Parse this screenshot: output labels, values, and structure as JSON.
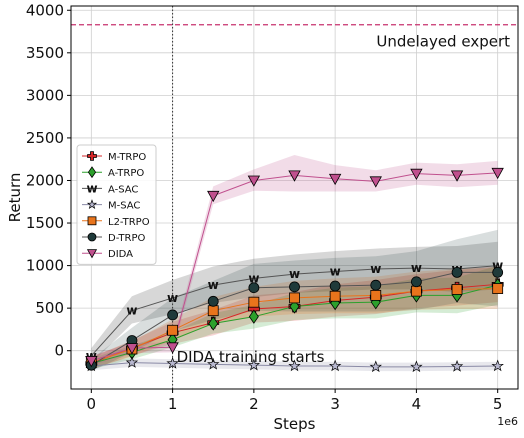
{
  "chart_data": {
    "type": "line",
    "xlabel": "Steps",
    "ylabel": "Return",
    "x_multiplier_label": "1e6",
    "xlim": [
      -0.25,
      5.25
    ],
    "ylim": [
      -450,
      4050
    ],
    "xticks": [
      0,
      1,
      2,
      3,
      4,
      5
    ],
    "yticks": [
      0,
      500,
      1000,
      1500,
      2000,
      2500,
      3000,
      3500,
      4000
    ],
    "grid": true,
    "legend_position": "center-left",
    "annotations": [
      {
        "text": "Undelayed expert",
        "type": "hline",
        "y": 3830,
        "color": "#c8326e"
      },
      {
        "text": "DIDA training starts",
        "type": "vline",
        "x": 1,
        "color": "#333333"
      }
    ],
    "series": [
      {
        "name": "M-TRPO",
        "color": "#d62728",
        "marker": "plus",
        "x": [
          0,
          0.5,
          1,
          1.5,
          2,
          2.5,
          3,
          3.5,
          4,
          4.5,
          5
        ],
        "y": [
          -150,
          30,
          210,
          330,
          490,
          520,
          590,
          630,
          700,
          740,
          780
        ],
        "band": [
          [
            -220,
            -80
          ],
          [
            -60,
            120
          ],
          [
            80,
            340
          ],
          [
            180,
            480
          ],
          [
            330,
            650
          ],
          [
            350,
            690
          ],
          [
            400,
            780
          ],
          [
            430,
            830
          ],
          [
            500,
            900
          ],
          [
            530,
            950
          ],
          [
            570,
            990
          ]
        ]
      },
      {
        "name": "A-TRPO",
        "color": "#2ca02c",
        "marker": "diamond",
        "x": [
          0,
          0.5,
          1,
          1.5,
          2,
          2.5,
          3,
          3.5,
          4,
          4.5,
          5
        ],
        "y": [
          -150,
          -20,
          130,
          320,
          400,
          520,
          560,
          570,
          650,
          650,
          770
        ],
        "band": [
          [
            -220,
            -90
          ],
          [
            -100,
            60
          ],
          [
            40,
            220
          ],
          [
            200,
            440
          ],
          [
            260,
            540
          ],
          [
            360,
            680
          ],
          [
            380,
            740
          ],
          [
            380,
            760
          ],
          [
            450,
            850
          ],
          [
            440,
            860
          ],
          [
            540,
            1000
          ]
        ]
      },
      {
        "name": "A-SAC",
        "color": "#111111",
        "marker": "w",
        "x": [
          0,
          0.5,
          1,
          1.5,
          2,
          2.5,
          3,
          3.5,
          4,
          4.5,
          5
        ],
        "y": [
          -60,
          470,
          620,
          770,
          850,
          900,
          930,
          960,
          970,
          960,
          1000
        ],
        "band": [
          [
            -150,
            30
          ],
          [
            320,
            640
          ],
          [
            430,
            830
          ],
          [
            560,
            990
          ],
          [
            630,
            1080
          ],
          [
            680,
            1130
          ],
          [
            700,
            1170
          ],
          [
            720,
            1200
          ],
          [
            720,
            1220
          ],
          [
            690,
            1230
          ],
          [
            720,
            1280
          ]
        ]
      },
      {
        "name": "M-SAC",
        "color": "#8a8aa6",
        "marker": "star",
        "x": [
          0,
          0.5,
          1,
          1.5,
          2,
          2.5,
          3,
          3.5,
          4,
          4.5,
          5
        ],
        "y": [
          -180,
          -140,
          -150,
          -160,
          -170,
          -180,
          -180,
          -190,
          -190,
          -185,
          -180
        ],
        "band": [
          [
            -230,
            -130
          ],
          [
            -190,
            -90
          ],
          [
            -200,
            -100
          ],
          [
            -210,
            -110
          ],
          [
            -220,
            -120
          ],
          [
            -230,
            -130
          ],
          [
            -230,
            -130
          ],
          [
            -240,
            -140
          ],
          [
            -240,
            -140
          ],
          [
            -235,
            -135
          ],
          [
            -230,
            -130
          ]
        ]
      },
      {
        "name": "L2-TRPO",
        "color": "#e8741c",
        "marker": "square",
        "x": [
          0,
          0.5,
          1,
          1.5,
          2,
          2.5,
          3,
          3.5,
          4,
          4.5,
          5
        ],
        "y": [
          -140,
          20,
          240,
          470,
          570,
          620,
          640,
          650,
          700,
          720,
          730
        ],
        "band": [
          [
            -210,
            -70
          ],
          [
            -70,
            110
          ],
          [
            120,
            370
          ],
          [
            320,
            630
          ],
          [
            400,
            750
          ],
          [
            430,
            820
          ],
          [
            440,
            850
          ],
          [
            440,
            870
          ],
          [
            480,
            930
          ],
          [
            490,
            960
          ],
          [
            490,
            980
          ]
        ]
      },
      {
        "name": "D-TRPO",
        "color": "#1f3a3a",
        "marker": "circle",
        "x": [
          0,
          0.5,
          1,
          1.5,
          2,
          2.5,
          3,
          3.5,
          4,
          4.5,
          5
        ],
        "y": [
          -170,
          120,
          420,
          580,
          740,
          750,
          760,
          770,
          810,
          920,
          920
        ],
        "band": [
          [
            -240,
            -100
          ],
          [
            -20,
            270
          ],
          [
            230,
            620
          ],
          [
            360,
            820
          ],
          [
            470,
            1020
          ],
          [
            460,
            1060
          ],
          [
            460,
            1090
          ],
          [
            460,
            1110
          ],
          [
            480,
            1170
          ],
          [
            560,
            1310
          ],
          [
            520,
            1420
          ]
        ]
      },
      {
        "name": "DIDA",
        "color": "#c0508e",
        "marker": "triangle-down",
        "x": [
          0,
          0.5,
          1,
          1.5,
          2,
          2.5,
          3,
          3.5,
          4,
          4.5,
          5
        ],
        "y": [
          -120,
          30,
          40,
          1820,
          2000,
          2060,
          2020,
          1990,
          2080,
          2060,
          2090
        ],
        "band": [
          [
            -180,
            -60
          ],
          [
            -30,
            90
          ],
          [
            -20,
            100
          ],
          [
            1720,
            1930
          ],
          [
            1880,
            2130
          ],
          [
            1870,
            2300
          ],
          [
            1870,
            2180
          ],
          [
            1870,
            2120
          ],
          [
            1950,
            2210
          ],
          [
            1920,
            2190
          ],
          [
            1950,
            2230
          ]
        ]
      }
    ]
  }
}
